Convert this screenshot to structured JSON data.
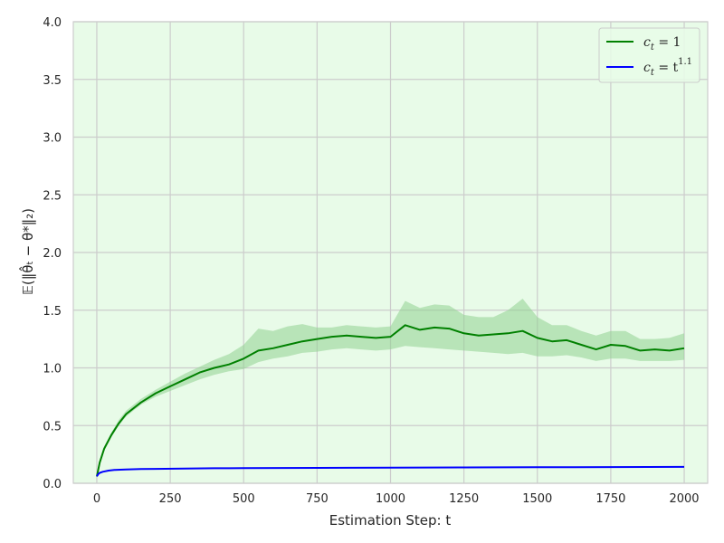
{
  "chart_data": {
    "type": "line",
    "title": "",
    "xlabel": "Estimation Step: t",
    "ylabel": "𝔼(‖θ̂ₜ − θ*‖₂)",
    "xlim": [
      -80,
      2080
    ],
    "ylim": [
      0,
      4
    ],
    "xticks": [
      0,
      250,
      500,
      750,
      1000,
      1250,
      1500,
      1750,
      2000
    ],
    "yticks": [
      0.0,
      0.5,
      1.0,
      1.5,
      2.0,
      2.5,
      3.0,
      3.5,
      4.0
    ],
    "xtick_labels": [
      "0",
      "250",
      "500",
      "750",
      "1000",
      "1250",
      "1500",
      "1750",
      "2000"
    ],
    "ytick_labels": [
      "0.0",
      "0.5",
      "1.0",
      "1.5",
      "2.0",
      "2.5",
      "3.0",
      "3.5",
      "4.0"
    ],
    "grid": true,
    "legend_position": "top-right",
    "background_color": "#e8fbe8",
    "grid_color": "#cccccc",
    "series": [
      {
        "name": "c_t = 1",
        "color": "#008000",
        "band_color": "#8fd18f",
        "x": [
          0,
          10,
          25,
          50,
          75,
          100,
          150,
          200,
          250,
          300,
          350,
          400,
          450,
          500,
          550,
          600,
          650,
          700,
          750,
          800,
          850,
          900,
          950,
          1000,
          1050,
          1100,
          1150,
          1200,
          1250,
          1300,
          1350,
          1400,
          1450,
          1500,
          1550,
          1600,
          1650,
          1700,
          1750,
          1800,
          1850,
          1900,
          1950,
          2000
        ],
        "y": [
          0.06,
          0.18,
          0.3,
          0.42,
          0.52,
          0.6,
          0.7,
          0.78,
          0.84,
          0.9,
          0.96,
          1.0,
          1.03,
          1.08,
          1.15,
          1.17,
          1.2,
          1.23,
          1.25,
          1.27,
          1.28,
          1.27,
          1.26,
          1.27,
          1.37,
          1.33,
          1.35,
          1.34,
          1.3,
          1.28,
          1.29,
          1.3,
          1.32,
          1.26,
          1.23,
          1.24,
          1.2,
          1.16,
          1.2,
          1.19,
          1.15,
          1.16,
          1.15,
          1.17
        ],
        "y_lower": [
          0.05,
          0.16,
          0.28,
          0.4,
          0.5,
          0.58,
          0.68,
          0.75,
          0.8,
          0.85,
          0.9,
          0.94,
          0.97,
          0.99,
          1.05,
          1.08,
          1.1,
          1.13,
          1.14,
          1.16,
          1.17,
          1.16,
          1.15,
          1.16,
          1.19,
          1.18,
          1.17,
          1.16,
          1.15,
          1.14,
          1.13,
          1.12,
          1.13,
          1.1,
          1.1,
          1.11,
          1.09,
          1.06,
          1.08,
          1.08,
          1.06,
          1.06,
          1.06,
          1.07
        ],
        "y_upper": [
          0.08,
          0.2,
          0.32,
          0.44,
          0.55,
          0.63,
          0.73,
          0.81,
          0.88,
          0.95,
          1.01,
          1.07,
          1.12,
          1.2,
          1.34,
          1.32,
          1.36,
          1.38,
          1.35,
          1.35,
          1.37,
          1.36,
          1.35,
          1.36,
          1.58,
          1.52,
          1.55,
          1.54,
          1.46,
          1.44,
          1.44,
          1.5,
          1.6,
          1.44,
          1.37,
          1.37,
          1.32,
          1.28,
          1.32,
          1.32,
          1.25,
          1.25,
          1.26,
          1.3
        ]
      },
      {
        "name": "c_t = t^1.1",
        "color": "#0000ff",
        "x": [
          0,
          5,
          10,
          20,
          40,
          60,
          100,
          150,
          200,
          300,
          400,
          500,
          750,
          1000,
          1250,
          1500,
          1750,
          2000
        ],
        "y": [
          0.06,
          0.08,
          0.09,
          0.1,
          0.11,
          0.115,
          0.12,
          0.123,
          0.125,
          0.128,
          0.13,
          0.131,
          0.133,
          0.135,
          0.137,
          0.139,
          0.14,
          0.142
        ]
      }
    ],
    "legend_entries": [
      {
        "label_main": "c",
        "label_sub": "t",
        "label_rest": " = 1"
      },
      {
        "label_main": "c",
        "label_sub": "t",
        "label_rest": " = t",
        "label_sup": "1.1"
      }
    ]
  }
}
